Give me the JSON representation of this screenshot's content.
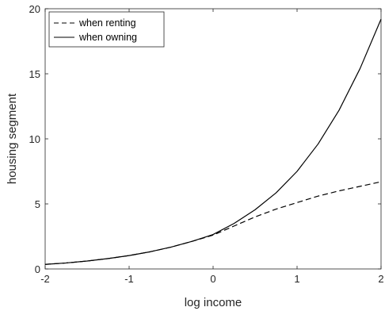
{
  "chart_data": {
    "type": "line",
    "xlabel": "log income",
    "ylabel": "housing segment",
    "xlim": [
      -2,
      2
    ],
    "ylim": [
      0,
      20
    ],
    "xticks": [
      -2,
      -1,
      0,
      1,
      2
    ],
    "yticks": [
      0,
      5,
      10,
      15,
      20
    ],
    "grid": false,
    "legend_position": "top-left",
    "x": [
      -2.0,
      -1.75,
      -1.5,
      -1.25,
      -1.0,
      -0.75,
      -0.5,
      -0.25,
      0.0,
      0.25,
      0.5,
      0.75,
      1.0,
      1.25,
      1.5,
      1.75,
      2.0
    ],
    "series": [
      {
        "name": "when renting",
        "style": "dashed",
        "color": "#000000",
        "values": [
          0.35,
          0.46,
          0.61,
          0.8,
          1.03,
          1.32,
          1.68,
          2.12,
          2.6,
          3.3,
          4.0,
          4.6,
          5.1,
          5.6,
          6.0,
          6.35,
          6.7
        ]
      },
      {
        "name": "when owning",
        "style": "solid",
        "color": "#000000",
        "values": [
          0.35,
          0.46,
          0.61,
          0.8,
          1.03,
          1.32,
          1.68,
          2.12,
          2.65,
          3.5,
          4.55,
          5.85,
          7.5,
          9.6,
          12.2,
          15.4,
          19.2
        ]
      }
    ]
  }
}
